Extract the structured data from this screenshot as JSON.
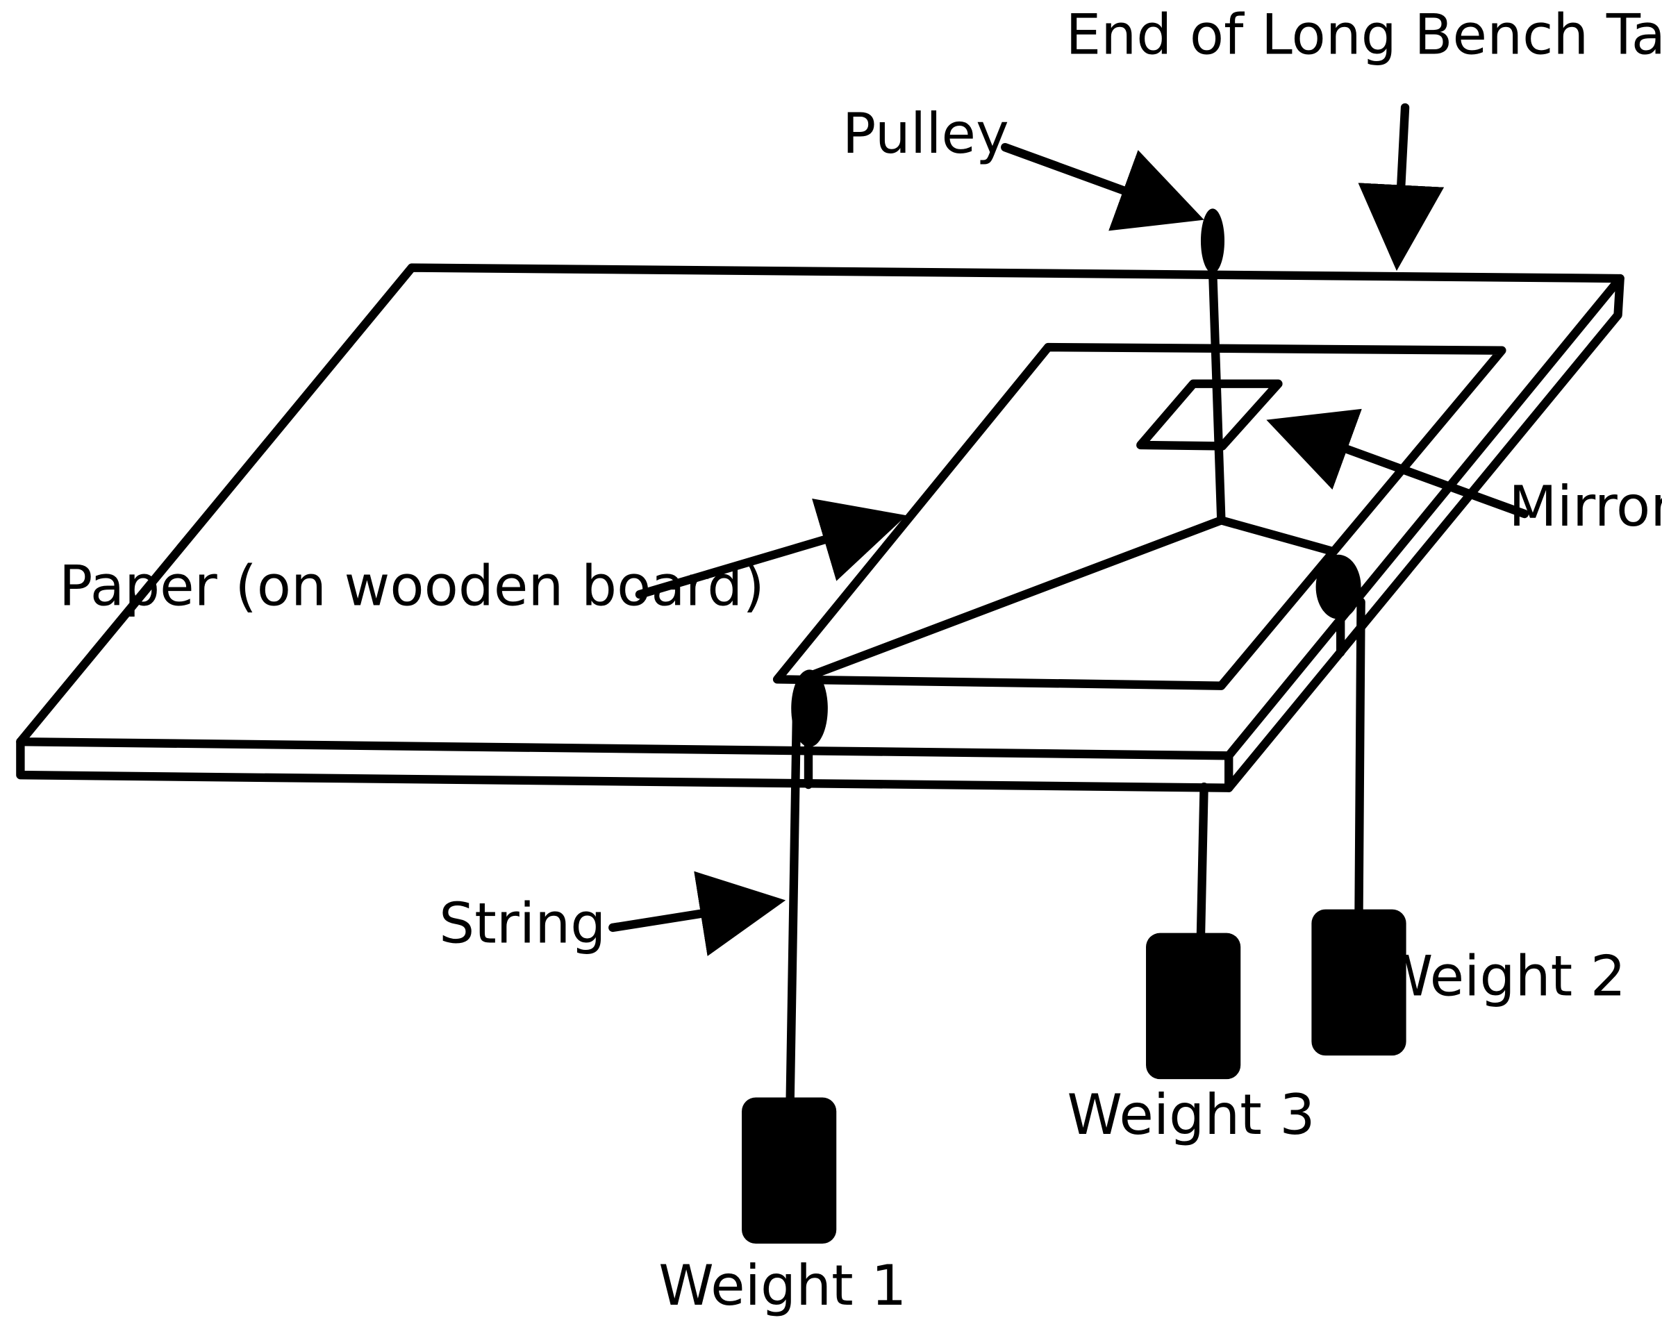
{
  "labels": {
    "end_of_table": "End of Long Bench Table",
    "pulley": "Pulley",
    "mirror": "Mirror",
    "paper": "Paper (on wooden board)",
    "string": "String",
    "weight1": "Weight 1",
    "weight2": "Weight 2",
    "weight3": "Weight 3"
  },
  "colors": {
    "ink": "#000000",
    "background": "#ffffff"
  }
}
